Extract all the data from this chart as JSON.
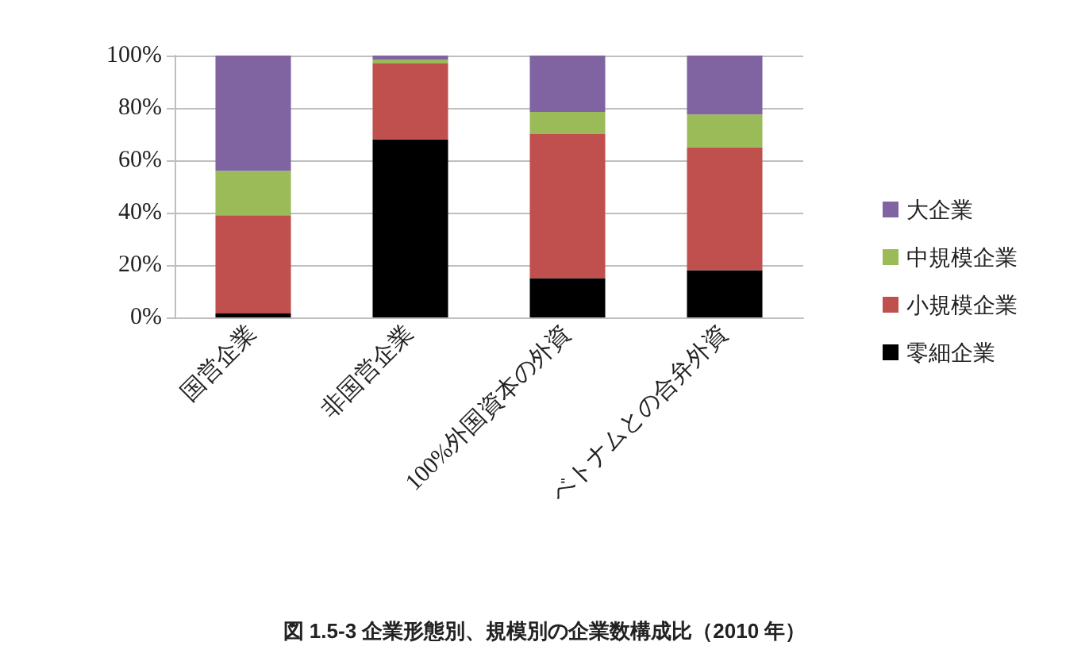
{
  "chart_data": {
    "type": "bar",
    "stacked": true,
    "title": "図 1.5-3 企業形態別、規模別の企業数構成比（2010 年）",
    "categories": [
      "国営企業",
      "非国営企業",
      "100%外国資本の外資",
      "ベトナムとの合弁外資"
    ],
    "series": [
      {
        "name": "零細企業",
        "color": "#000000",
        "values": [
          1.5,
          68,
          15,
          18
        ]
      },
      {
        "name": "小規模企業",
        "color": "#c0504d",
        "values": [
          37.5,
          29,
          55,
          47
        ]
      },
      {
        "name": "中規模企業",
        "color": "#9bbb59",
        "values": [
          17,
          1.5,
          8.5,
          12.5
        ]
      },
      {
        "name": "大企業",
        "color": "#8064a2",
        "values": [
          44,
          1.5,
          21.5,
          22.5
        ]
      }
    ],
    "ylim": [
      0,
      100
    ],
    "yticks": [
      {
        "value": 0,
        "label": "0%"
      },
      {
        "value": 20,
        "label": "20%"
      },
      {
        "value": 40,
        "label": "40%"
      },
      {
        "value": 60,
        "label": "60%"
      },
      {
        "value": 80,
        "label": "80%"
      },
      {
        "value": 100,
        "label": "100%"
      }
    ],
    "grid": "y",
    "legend": "right"
  }
}
